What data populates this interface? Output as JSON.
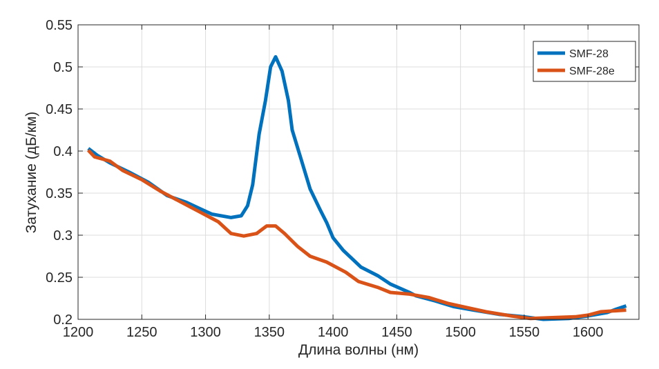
{
  "chart_data": {
    "type": "line",
    "title": "",
    "xlabel": "Длина волны (нм)",
    "ylabel": "Затухание (дБ/км)",
    "xlim": [
      1200,
      1640
    ],
    "ylim": [
      0.2,
      0.55
    ],
    "xticks": [
      1200,
      1250,
      1300,
      1350,
      1400,
      1450,
      1500,
      1550,
      1600
    ],
    "yticks": [
      0.2,
      0.25,
      0.3,
      0.35,
      0.4,
      0.45,
      0.5,
      0.55
    ],
    "xtick_labels": [
      "1200",
      "1250",
      "1300",
      "1350",
      "1400",
      "1450",
      "1500",
      "1550",
      "1600"
    ],
    "ytick_labels": [
      "0.2",
      "0.25",
      "0.3",
      "0.35",
      "0.4",
      "0.45",
      "0.5",
      "0.55"
    ],
    "grid": true,
    "legend_position": "top-right",
    "series": [
      {
        "name": "SMF-28",
        "color": "#0072BD",
        "x": [
          1208,
          1215,
          1225,
          1240,
          1255,
          1270,
          1285,
          1295,
          1305,
          1320,
          1328,
          1333,
          1337,
          1342,
          1347,
          1351,
          1355,
          1360,
          1365,
          1368,
          1375,
          1382,
          1390,
          1395,
          1400,
          1408,
          1415,
          1422,
          1435,
          1445,
          1460,
          1465,
          1480,
          1495,
          1510,
          1530,
          1550,
          1565,
          1585,
          1600,
          1615,
          1622,
          1630
        ],
        "y": [
          0.403,
          0.395,
          0.386,
          0.375,
          0.363,
          0.347,
          0.339,
          0.332,
          0.325,
          0.321,
          0.323,
          0.335,
          0.36,
          0.42,
          0.46,
          0.5,
          0.512,
          0.495,
          0.46,
          0.425,
          0.39,
          0.355,
          0.33,
          0.315,
          0.297,
          0.282,
          0.272,
          0.262,
          0.252,
          0.242,
          0.232,
          0.228,
          0.222,
          0.215,
          0.211,
          0.206,
          0.203,
          0.2,
          0.201,
          0.204,
          0.208,
          0.212,
          0.216
        ]
      },
      {
        "name": "SMF-28e",
        "color": "#D95319",
        "x": [
          1208,
          1213,
          1218,
          1225,
          1235,
          1250,
          1265,
          1280,
          1295,
          1310,
          1320,
          1330,
          1340,
          1348,
          1355,
          1362,
          1372,
          1382,
          1395,
          1410,
          1420,
          1435,
          1445,
          1460,
          1475,
          1490,
          1505,
          1520,
          1540,
          1555,
          1570,
          1590,
          1600,
          1610,
          1630
        ],
        "y": [
          0.401,
          0.393,
          0.391,
          0.388,
          0.377,
          0.366,
          0.352,
          0.34,
          0.328,
          0.316,
          0.302,
          0.299,
          0.302,
          0.311,
          0.311,
          0.302,
          0.287,
          0.275,
          0.268,
          0.256,
          0.245,
          0.238,
          0.232,
          0.23,
          0.226,
          0.219,
          0.214,
          0.209,
          0.204,
          0.201,
          0.202,
          0.203,
          0.205,
          0.209,
          0.211
        ]
      }
    ]
  }
}
